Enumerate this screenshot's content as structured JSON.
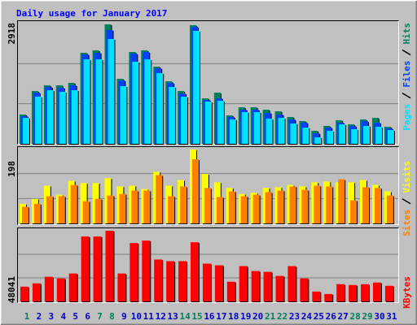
{
  "chart_data": [
    {
      "type": "bar",
      "title": "Daily usage for January 2017",
      "categories": [
        "1",
        "2",
        "3",
        "4",
        "5",
        "6",
        "7",
        "8",
        "9",
        "10",
        "11",
        "12",
        "13",
        "14",
        "15",
        "16",
        "17",
        "18",
        "19",
        "20",
        "21",
        "22",
        "23",
        "24",
        "25",
        "26",
        "27",
        "28",
        "29",
        "30",
        "31"
      ],
      "category_colors": [
        "#00805c",
        "#0000c0",
        "#0000c0",
        "#0000c0",
        "#0000c0",
        "#0000c0",
        "#00805c",
        "#00805c",
        "#0000c0",
        "#0000c0",
        "#0000c0",
        "#0000c0",
        "#0000c0",
        "#00805c",
        "#00805c",
        "#0000c0",
        "#0000c0",
        "#0000c0",
        "#0000c0",
        "#0000c0",
        "#00805c",
        "#00805c",
        "#0000c0",
        "#0000c0",
        "#0000c0",
        "#0000c0",
        "#0000c0",
        "#00805c",
        "#00805c",
        "#0000c0",
        "#0000c0"
      ],
      "ylim": [
        0,
        2918
      ],
      "yticks": [
        2918
      ],
      "series": [
        {
          "name": "Hits",
          "color": "#00805c",
          "values": [
            710,
            1282,
            1420,
            1420,
            1479,
            2209,
            2268,
            2899,
            1578,
            2228,
            2268,
            1873,
            1518,
            1282,
            2879,
            1104,
            1242,
            690,
            887,
            887,
            828,
            789,
            651,
            552,
            316,
            434,
            572,
            473,
            592,
            631,
            414
          ]
        },
        {
          "name": "Files",
          "color": "#0040ff",
          "values": [
            670,
            1242,
            1380,
            1360,
            1420,
            2169,
            2209,
            2761,
            1538,
            2189,
            2228,
            1834,
            1479,
            1223,
            2840,
            1065,
            1104,
            651,
            828,
            828,
            749,
            710,
            592,
            513,
            256,
            394,
            513,
            434,
            552,
            513,
            375
          ]
        },
        {
          "name": "Pages",
          "color": "#00e0ff",
          "values": [
            630,
            1144,
            1301,
            1262,
            1301,
            2051,
            2051,
            2544,
            1400,
            1992,
            2051,
            1716,
            1380,
            1144,
            2741,
            1025,
            1045,
            592,
            769,
            769,
            611,
            631,
            493,
            394,
            158,
            316,
            473,
            355,
            434,
            414,
            335
          ]
        }
      ]
    },
    {
      "type": "bar",
      "ylim": [
        0,
        198
      ],
      "yticks": [
        198
      ],
      "series": [
        {
          "name": "Visits",
          "color": "#ffff00",
          "values": [
            52,
            65,
            100,
            76,
            113,
            107,
            107,
            120,
            98,
            100,
            91,
            137,
            100,
            115,
            196,
            131,
            109,
            94,
            78,
            81,
            94,
            96,
            102,
            98,
            109,
            111,
            109,
            109,
            115,
            102,
            85
          ]
        },
        {
          "name": "Sites",
          "color": "#ff8000",
          "values": [
            44,
            52,
            72,
            72,
            102,
            59,
            65,
            74,
            78,
            87,
            87,
            128,
            72,
            98,
            170,
            94,
            70,
            85,
            72,
            76,
            83,
            87,
            98,
            89,
            100,
            98,
            117,
            61,
            96,
            94,
            74
          ]
        }
      ]
    },
    {
      "type": "bar",
      "ylim": [
        0,
        48041
      ],
      "yticks": [
        48041
      ],
      "series": [
        {
          "name": "KBytes",
          "color": "#ff0000",
          "values": [
            10055,
            12289,
            16758,
            15641,
            18992,
            44130,
            44130,
            48041,
            18992,
            39661,
            41337,
            28489,
            27372,
            27372,
            40220,
            25696,
            24579,
            13406,
            24020,
            20669,
            20110,
            17317,
            24020,
            15641,
            6703,
            5028,
            11730,
            11172,
            11730,
            12848,
            10614
          ]
        }
      ]
    }
  ]
}
